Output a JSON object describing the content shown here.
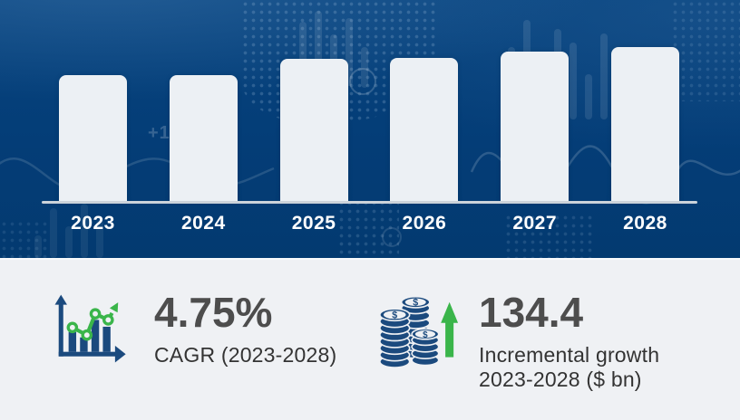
{
  "page": {
    "type": "market-growth-infographic"
  },
  "chart_data": {
    "type": "bar",
    "title": "",
    "categories": [
      "2023",
      "2024",
      "2025",
      "2026",
      "2027",
      "2028"
    ],
    "values": [
      140,
      140,
      158,
      159,
      166,
      171
    ],
    "values_note": "bar heights in pixels; chart displays no numeric y-axis labels",
    "xlabel": "",
    "ylabel": "",
    "grid": false,
    "legend": false,
    "bar_color": "#ecf0f4",
    "background_color": "#04407c",
    "axis_line_color": "#ccd3da",
    "tick_label_color": "#ffffff"
  },
  "stats": {
    "cagr": {
      "value": "4.75%",
      "label": "CAGR (2023-2028)"
    },
    "incremental": {
      "value": "134.4",
      "label_line1": "Incremental growth",
      "label_line2": "2023-2028 ($ bn)"
    }
  },
  "colors": {
    "stat_value": "#4d4d4d",
    "stat_label": "#333333",
    "icon_blue": "#1b4a7e",
    "icon_green": "#3ab54a",
    "stats_background": "#eff1f4"
  },
  "background": {
    "decor_faint_text": "+1"
  }
}
